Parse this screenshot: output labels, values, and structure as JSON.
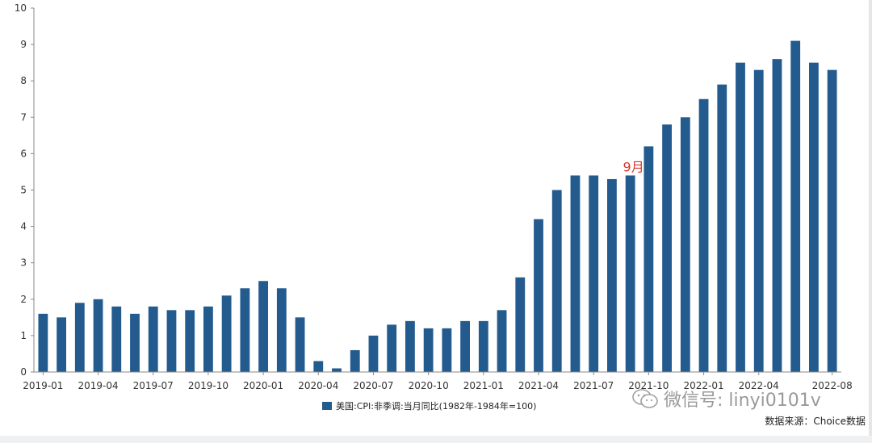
{
  "chart_data": {
    "type": "bar",
    "categories": [
      "2019-01",
      "2019-02",
      "2019-03",
      "2019-04",
      "2019-05",
      "2019-06",
      "2019-07",
      "2019-08",
      "2019-09",
      "2019-10",
      "2019-11",
      "2019-12",
      "2020-01",
      "2020-02",
      "2020-03",
      "2020-04",
      "2020-05",
      "2020-06",
      "2020-07",
      "2020-08",
      "2020-09",
      "2020-10",
      "2020-11",
      "2020-12",
      "2021-01",
      "2021-02",
      "2021-03",
      "2021-04",
      "2021-05",
      "2021-06",
      "2021-07",
      "2021-08",
      "2021-09",
      "2021-10",
      "2021-11",
      "2021-12",
      "2022-01",
      "2022-02",
      "2022-03",
      "2022-04",
      "2022-05",
      "2022-06",
      "2022-07",
      "2022-08"
    ],
    "x_tick_labels": [
      "2019-01",
      "2019-04",
      "2019-07",
      "2019-10",
      "2020-01",
      "2020-04",
      "2020-07",
      "2020-10",
      "2021-01",
      "2021-04",
      "2021-07",
      "2021-10",
      "2022-01",
      "2022-04",
      "2022-08"
    ],
    "y_tick_labels": [
      "0",
      "1",
      "2",
      "3",
      "4",
      "5",
      "6",
      "7",
      "8",
      "9",
      "10"
    ],
    "series": [
      {
        "name": "美国:CPI:非季调:当月同比(1982年-1984年=100)",
        "color": "#245b8e",
        "values": [
          1.6,
          1.5,
          1.9,
          2.0,
          1.8,
          1.6,
          1.8,
          1.7,
          1.7,
          1.8,
          2.1,
          2.3,
          2.5,
          2.3,
          1.5,
          0.3,
          0.1,
          0.6,
          1.0,
          1.3,
          1.4,
          1.2,
          1.2,
          1.4,
          1.4,
          1.7,
          2.6,
          4.2,
          5.0,
          5.4,
          5.4,
          5.3,
          5.4,
          6.2,
          6.8,
          7.0,
          7.5,
          7.9,
          8.5,
          8.3,
          8.6,
          9.1,
          8.5,
          8.3
        ]
      }
    ],
    "ylim": [
      0,
      10
    ],
    "grid": false,
    "legend_position": "bottom-center",
    "annotations": [
      {
        "text": "9月",
        "category": "2021-09",
        "color": "#d9342b"
      }
    ]
  },
  "watermark": {
    "text": "微信号: linyi0101v",
    "icon": "wechat-icon"
  },
  "source_note": "数据来源：Choice数据"
}
